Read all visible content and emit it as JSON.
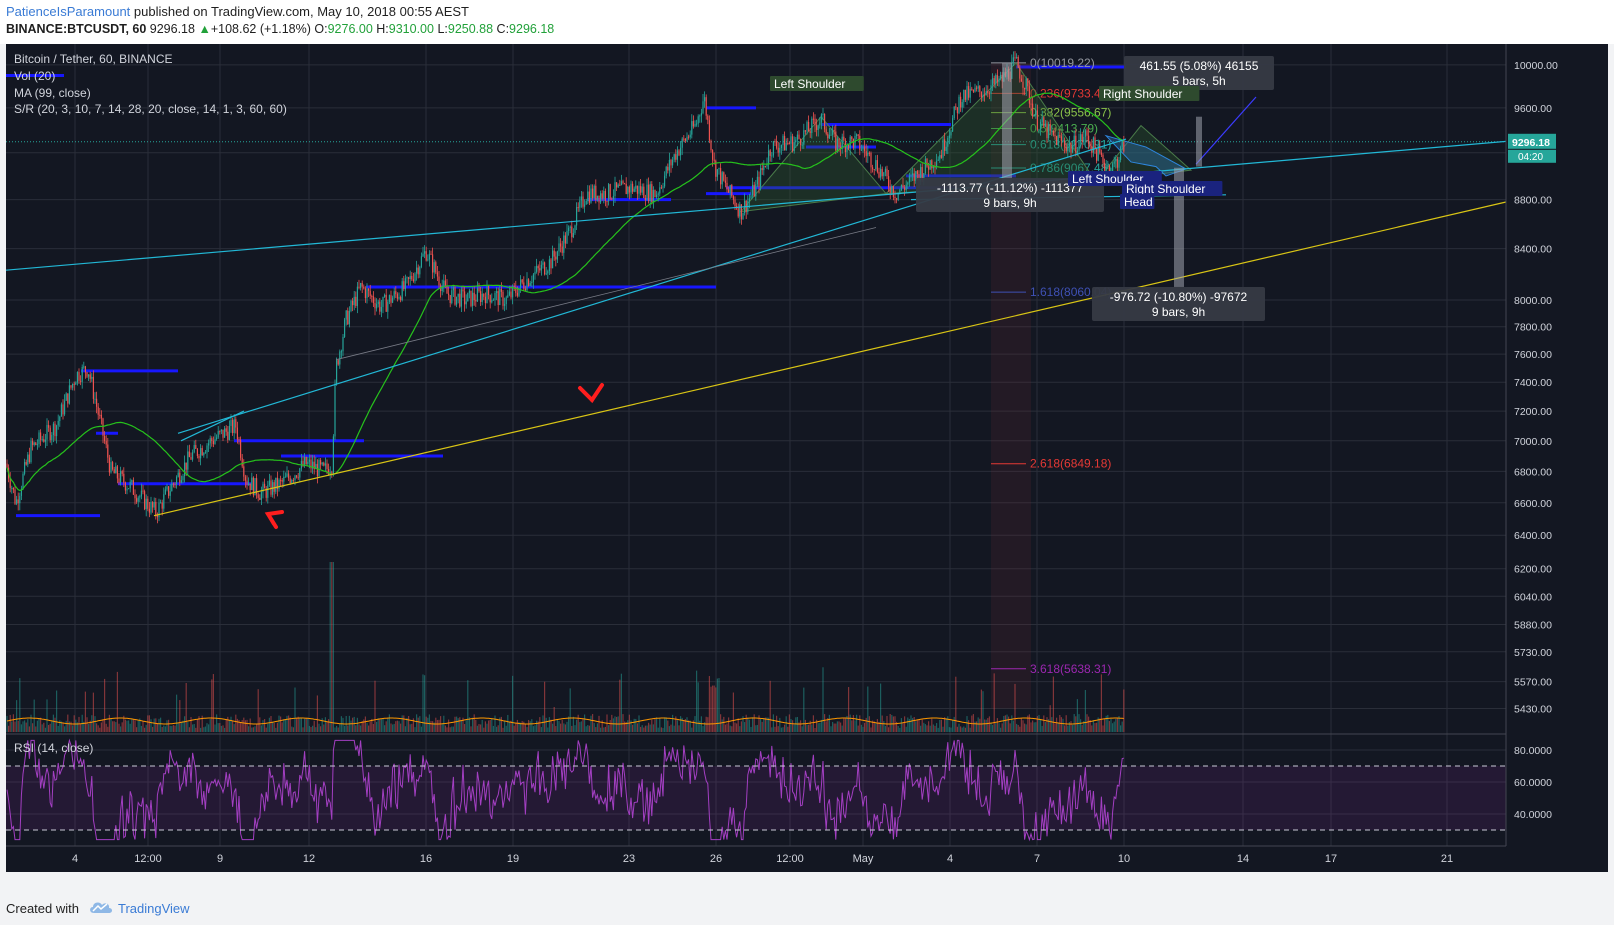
{
  "header": {
    "author": "PatienceIsParamount",
    "published": " published on TradingView.com, May 10, 2018 00:55 AEST",
    "symbol": "BINANCE:BTCUSDT, 60",
    "last": "9296.18",
    "change": "+108.62 (+1.18%)",
    "o_label": "O:",
    "o": "9276.00",
    "h_label": "H:",
    "h": "9310.00",
    "l_label": "L:",
    "l": "9250.88",
    "c_label": "C:",
    "c": "9296.18"
  },
  "legend": [
    "Bitcoin / Tether, 60, BINANCE",
    "Vol (20)",
    "MA (99, close)",
    "S/R (20, 3, 10, 7, 14, 28, 20, close, 14, 1, 3, 60, 60)"
  ],
  "rsi_label": "RSI (14, close)",
  "footer": {
    "created": "Created with",
    "brand": "TradingView"
  },
  "colors": {
    "bg": "#131722",
    "grid": "#2a2e39",
    "up": "#26a69a",
    "down": "#ef5350",
    "ma": "#26c21c",
    "sr": "#1717ff",
    "trend_cyan": "#22b8d6",
    "trend_yellow": "#d9c515",
    "rsi": "#9c27b0",
    "price_tag": "#26a69a"
  },
  "chart_data": {
    "type": "candlestick",
    "title": "Bitcoin / Tether, 60, BINANCE",
    "interval": "60",
    "y_scale": "log",
    "ylim": [
      5300,
      10200
    ],
    "y_ticks": [
      "10000.00",
      "9600.00",
      "9200.00",
      "8800.00",
      "8400.00",
      "8000.00",
      "7800.00",
      "7600.00",
      "7400.00",
      "7200.00",
      "7000.00",
      "6800.00",
      "6600.00",
      "6400.00",
      "6200.00",
      "6040.00",
      "5880.00",
      "5730.00",
      "5570.00",
      "5430.00"
    ],
    "x_ticks": [
      "4",
      "12:00",
      "9",
      "12",
      "16",
      "19",
      "23",
      "26",
      "12:00",
      "May",
      "4",
      "7",
      "10",
      "14",
      "17",
      "21"
    ],
    "last_price": "9296.18",
    "countdown": "04:20",
    "price_path": [
      {
        "x": 0,
        "y": 6850
      },
      {
        "x": 10,
        "y": 6600
      },
      {
        "x": 25,
        "y": 6950
      },
      {
        "x": 50,
        "y": 7100
      },
      {
        "x": 70,
        "y": 7450
      },
      {
        "x": 82,
        "y": 7500
      },
      {
        "x": 95,
        "y": 7100
      },
      {
        "x": 105,
        "y": 6800
      },
      {
        "x": 125,
        "y": 6700
      },
      {
        "x": 140,
        "y": 6600
      },
      {
        "x": 150,
        "y": 6540
      },
      {
        "x": 165,
        "y": 6700
      },
      {
        "x": 185,
        "y": 6900
      },
      {
        "x": 205,
        "y": 7000
      },
      {
        "x": 230,
        "y": 7100
      },
      {
        "x": 240,
        "y": 6750
      },
      {
        "x": 255,
        "y": 6660
      },
      {
        "x": 275,
        "y": 6720
      },
      {
        "x": 300,
        "y": 6850
      },
      {
        "x": 318,
        "y": 6800
      },
      {
        "x": 326,
        "y": 6850
      },
      {
        "x": 330,
        "y": 7500
      },
      {
        "x": 340,
        "y": 7850
      },
      {
        "x": 355,
        "y": 8100
      },
      {
        "x": 375,
        "y": 7950
      },
      {
        "x": 400,
        "y": 8100
      },
      {
        "x": 420,
        "y": 8380
      },
      {
        "x": 440,
        "y": 8050
      },
      {
        "x": 460,
        "y": 8000
      },
      {
        "x": 480,
        "y": 8050
      },
      {
        "x": 500,
        "y": 8000
      },
      {
        "x": 520,
        "y": 8150
      },
      {
        "x": 545,
        "y": 8300
      },
      {
        "x": 565,
        "y": 8550
      },
      {
        "x": 580,
        "y": 8850
      },
      {
        "x": 600,
        "y": 8850
      },
      {
        "x": 625,
        "y": 8900
      },
      {
        "x": 650,
        "y": 8850
      },
      {
        "x": 670,
        "y": 9200
      },
      {
        "x": 690,
        "y": 9450
      },
      {
        "x": 698,
        "y": 9700
      },
      {
        "x": 708,
        "y": 9100
      },
      {
        "x": 720,
        "y": 8900
      },
      {
        "x": 735,
        "y": 8700
      },
      {
        "x": 750,
        "y": 8900
      },
      {
        "x": 765,
        "y": 9250
      },
      {
        "x": 790,
        "y": 9300
      },
      {
        "x": 815,
        "y": 9500
      },
      {
        "x": 830,
        "y": 9280
      },
      {
        "x": 850,
        "y": 9300
      },
      {
        "x": 870,
        "y": 9100
      },
      {
        "x": 890,
        "y": 8850
      },
      {
        "x": 910,
        "y": 9000
      },
      {
        "x": 935,
        "y": 9200
      },
      {
        "x": 955,
        "y": 9700
      },
      {
        "x": 975,
        "y": 9750
      },
      {
        "x": 995,
        "y": 9850
      },
      {
        "x": 1010,
        "y": 10019
      },
      {
        "x": 1020,
        "y": 9800
      },
      {
        "x": 1030,
        "y": 9500
      },
      {
        "x": 1045,
        "y": 9350
      },
      {
        "x": 1065,
        "y": 9250
      },
      {
        "x": 1080,
        "y": 9350
      },
      {
        "x": 1095,
        "y": 9150
      },
      {
        "x": 1105,
        "y": 9050
      },
      {
        "x": 1112,
        "y": 9150
      },
      {
        "x": 1119,
        "y": 9296
      }
    ],
    "fibonacci": [
      {
        "label": "0(10019.22)",
        "value": 10019.22
      },
      {
        "label": "0.236(9733.46)",
        "value": 9733.46
      },
      {
        "label": "0.382(9556.67)",
        "value": 9556.67
      },
      {
        "label": "0.5(9413.79)",
        "value": 9413.79
      },
      {
        "label": "0.618(9270.91)",
        "value": 9270.91
      },
      {
        "label": "0.786(9067.48)",
        "value": 9067.48
      },
      {
        "label": "1.618(8060.04)",
        "value": 8060.04
      },
      {
        "label": "2.618(6849.18)",
        "value": 6849.18
      },
      {
        "label": "3.618(5638.31)",
        "value": 5638.31
      }
    ],
    "support_resistance": [
      7480,
      7050,
      7000,
      6900,
      6720,
      6520,
      8800,
      8850,
      9600,
      9450,
      8100,
      8900,
      9250,
      9000,
      9980,
      9900
    ],
    "annotations": {
      "left_shoulder_1": "Left Shoulder",
      "right_shoulder_1": "Right Shoulder",
      "left_shoulder_2": "Left Shoulder",
      "right_shoulder_2": "Right Shoulder",
      "head": "Head"
    },
    "measures": [
      {
        "line1": "461.55 (5.08%) 46155",
        "line2": "5 bars, 5h"
      },
      {
        "line1": "-1113.77 (-11.12%) -111377",
        "line2": "9 bars, 9h"
      },
      {
        "line1": "-976.72 (-10.80%) -97672",
        "line2": "9 bars, 9h"
      }
    ],
    "rsi": {
      "name": "RSI (14, close)",
      "ticks": [
        "80.0000",
        "60.0000",
        "40.0000"
      ],
      "bands": [
        70,
        30
      ]
    }
  }
}
